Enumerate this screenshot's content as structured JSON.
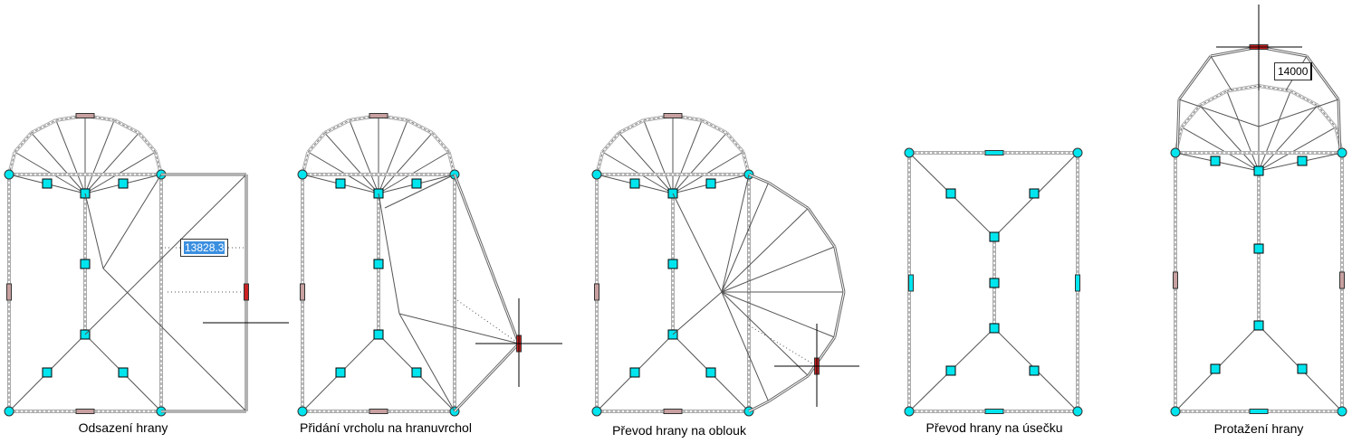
{
  "panels": [
    {
      "caption": "Odsazení hrany",
      "input_value": "13828.3"
    },
    {
      "caption": "Přidání vrcholu na hranuvrchol"
    },
    {
      "caption": "Převod hrany na oblouk"
    },
    {
      "caption": "Převod hrany na úsečku"
    },
    {
      "caption": "Protažení hrany",
      "input_value": "14000"
    }
  ],
  "colors": {
    "grip": "#00e5ee",
    "grip_hot": "#cc2222",
    "grip_mid": "#c8a0a0",
    "edge": "#888888"
  }
}
